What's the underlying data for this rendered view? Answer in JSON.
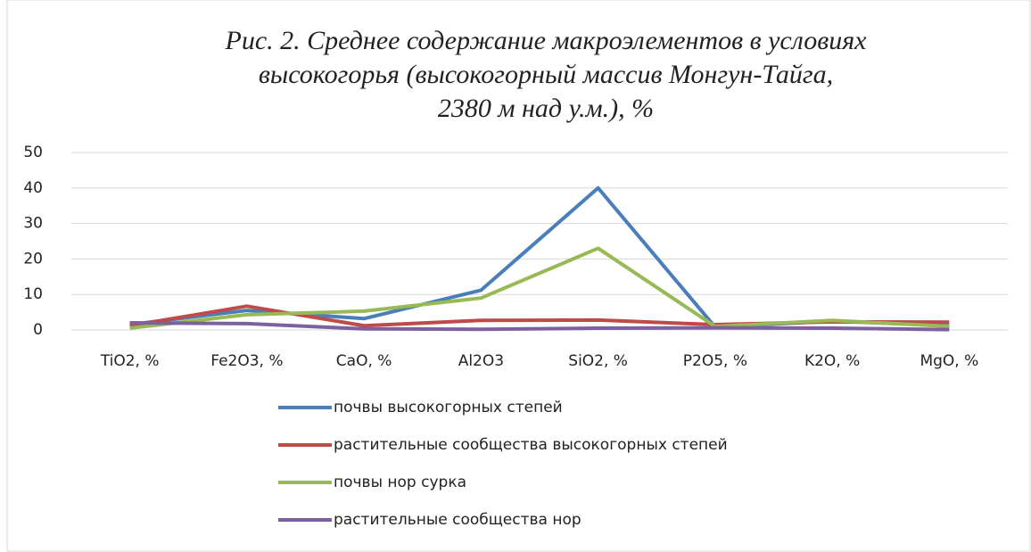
{
  "chart_data": {
    "type": "line",
    "title": [
      "Рис. 2. Среднее содержание макроэлементов в условиях",
      "высокогорья (высокогорный массив Монгун-Тайга,",
      "2380 м над у.м.), %"
    ],
    "categories": [
      "TiO2, %",
      "Fe2O3, %",
      "CaO, %",
      "Al2O3",
      "SiO2, %",
      "P2O5, %",
      "K2O, %",
      "MgO, %"
    ],
    "series": [
      {
        "name": "почвы высокогорных степей",
        "color": "#4a7ebb",
        "values": [
          1.5,
          5.5,
          3.2,
          11.2,
          40,
          0.8,
          2.5,
          1.2
        ]
      },
      {
        "name": "растительные сообщества высокогорных степей",
        "color": "#be4b48",
        "values": [
          1.2,
          6.7,
          1.2,
          2.7,
          2.8,
          1.5,
          2.3,
          2.2
        ]
      },
      {
        "name": "почвы нор сурка",
        "color": "#98b954",
        "values": [
          0.5,
          4.3,
          5.3,
          9,
          23,
          1,
          2.7,
          1
        ]
      },
      {
        "name": "растительные сообщества нор",
        "color": "#7d60a0",
        "values": [
          2,
          1.8,
          0.3,
          0.2,
          0.5,
          0.6,
          0.5,
          0.1
        ]
      }
    ],
    "ylim": [
      0,
      50
    ],
    "yticks": [
      0,
      10,
      20,
      30,
      40,
      50
    ],
    "grid": true
  }
}
